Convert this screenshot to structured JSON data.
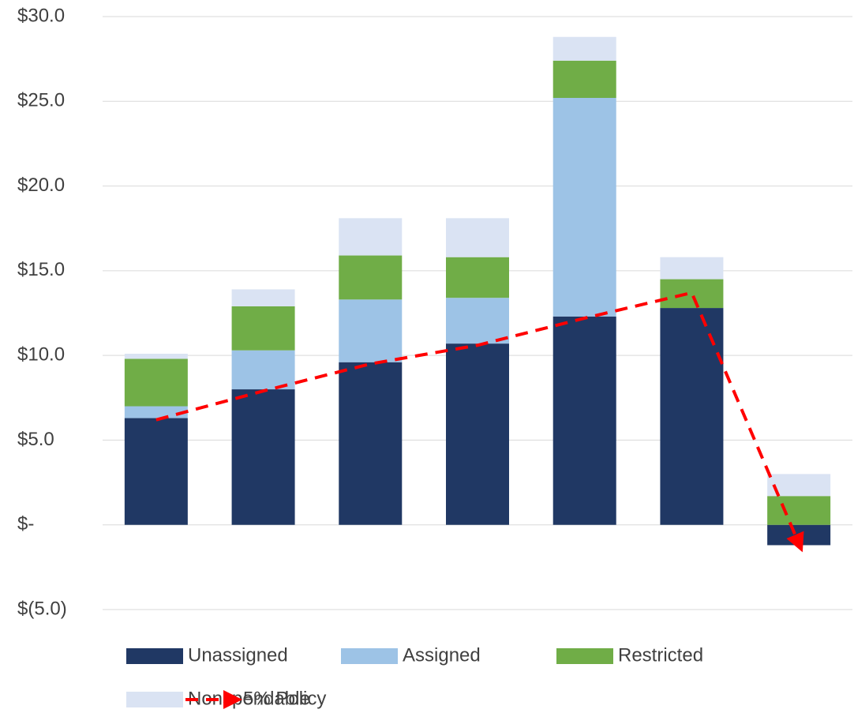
{
  "chart_data": {
    "type": "bar",
    "stacked": true,
    "categories": [
      null,
      null,
      null,
      null,
      null,
      null,
      null
    ],
    "series": [
      {
        "name": "Unassigned",
        "type": "bar",
        "color": "#203864",
        "values": [
          6.3,
          8.0,
          9.6,
          10.7,
          12.3,
          12.8,
          -1.2
        ]
      },
      {
        "name": "Assigned",
        "type": "bar",
        "color": "#9dc3e6",
        "values": [
          0.7,
          2.3,
          3.7,
          2.7,
          12.9,
          0,
          0
        ]
      },
      {
        "name": "Restricted",
        "type": "bar",
        "color": "#70ad47",
        "values": [
          2.8,
          2.6,
          2.6,
          2.4,
          2.2,
          1.7,
          1.7
        ]
      },
      {
        "name": "Nonspendable",
        "type": "bar",
        "color": "#dae3f3",
        "values": [
          0.3,
          1.0,
          2.2,
          2.3,
          1.4,
          1.3,
          1.3
        ]
      },
      {
        "name": "5% Policy",
        "type": "line",
        "color": "#ff0000",
        "dashed": true,
        "arrow": true,
        "values": [
          6.2,
          7.9,
          9.5,
          10.6,
          12.2,
          13.7,
          -1.1
        ]
      }
    ],
    "ylim": [
      -5,
      30
    ],
    "yticks": [
      {
        "value": -5,
        "label": "$(5.0)"
      },
      {
        "value": 0,
        "label": "$-"
      },
      {
        "value": 5,
        "label": "$5.0"
      },
      {
        "value": 10,
        "label": "$10.0"
      },
      {
        "value": 15,
        "label": "$15.0"
      },
      {
        "value": 20,
        "label": "$20.0"
      },
      {
        "value": 25,
        "label": "$25.0"
      },
      {
        "value": 30,
        "label": "$30.0"
      }
    ],
    "grid": true,
    "legend": "bottom"
  }
}
